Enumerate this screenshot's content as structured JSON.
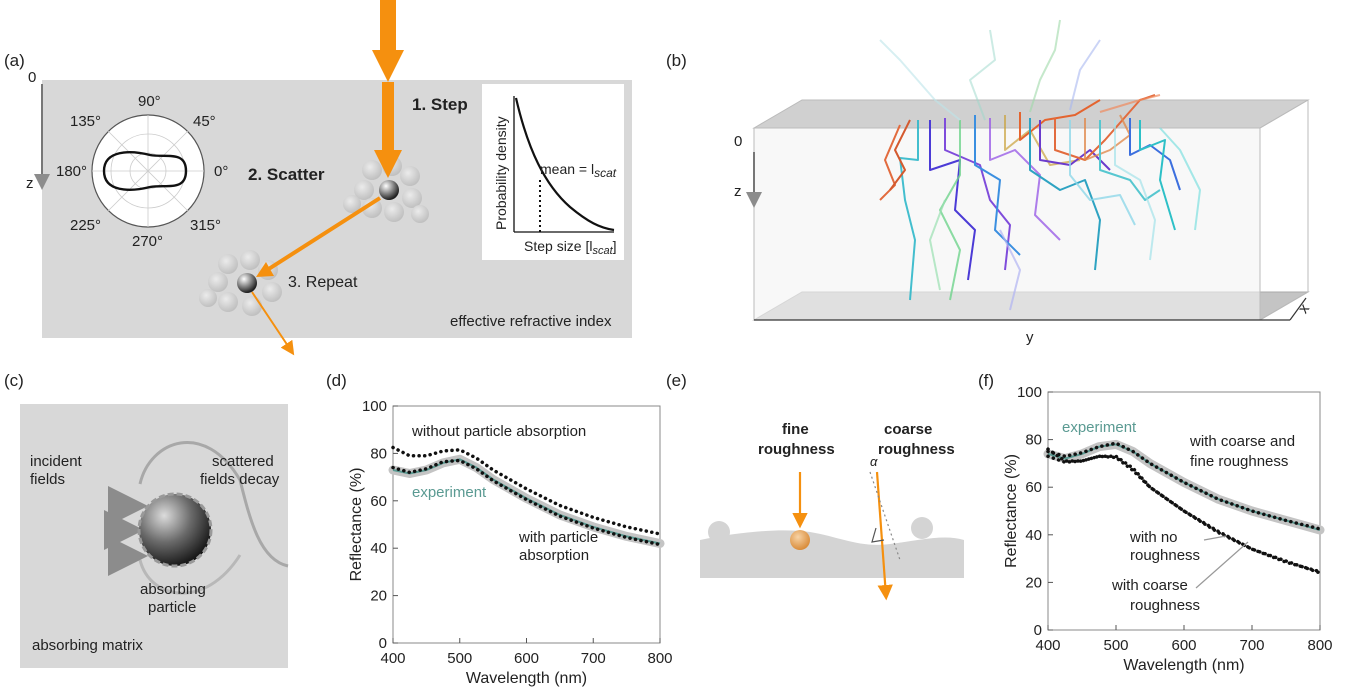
{
  "panels": {
    "a": {
      "label": "(a)",
      "axis_zero": "0",
      "axis_z": "z",
      "polar_angles": [
        "90°",
        "45°",
        "0°",
        "315°",
        "270°",
        "225°",
        "180°",
        "135°"
      ],
      "step1": "1. Step",
      "step2": "2. Scatter",
      "step3": "3. Repeat",
      "inset_ylabel": "Probability density",
      "inset_xlabel_main": "Step size [l",
      "inset_xlabel_sub": "scat",
      "inset_xlabel_end": "]",
      "inset_mean_main": "mean = l",
      "inset_mean_sub": "scat",
      "medium": "effective refractive index"
    },
    "b": {
      "label": "(b)",
      "axis_zero": "0",
      "axis_z": "z",
      "axis_y": "y",
      "axis_x": "x"
    },
    "c": {
      "label": "(c)",
      "incident_1": "incident",
      "incident_2": "fields",
      "scattered_1": "scattered",
      "scattered_2": "fields decay",
      "particle_1": "absorbing",
      "particle_2": "particle",
      "matrix": "absorbing matrix"
    },
    "d": {
      "label": "(d)",
      "ann_without": "without particle absorption",
      "ann_experiment": "experiment",
      "ann_with_1": "with particle",
      "ann_with_2": "absorption",
      "ylabel": "Reflectance (%)",
      "xlabel": "Wavelength (nm)"
    },
    "e": {
      "label": "(e)",
      "fine_1": "fine",
      "fine_2": "roughness",
      "coarse_1": "coarse",
      "coarse_2": "roughness",
      "alpha": "α"
    },
    "f": {
      "label": "(f)",
      "ann_experiment": "experiment",
      "ann_both_1": "with coarse and",
      "ann_both_2": "fine roughness",
      "ann_none_1": "with no",
      "ann_none_2": "roughness",
      "ann_coarse_1": "with coarse",
      "ann_coarse_2": "roughness",
      "ylabel": "Reflectance (%)",
      "xlabel": "Wavelength (nm)"
    }
  },
  "colors": {
    "orange": "#f5900f",
    "experiment": "#5a9a92",
    "panel_bg": "#d8d8d8"
  },
  "chart_data": [
    {
      "panel": "d",
      "type": "line",
      "xlabel": "Wavelength (nm)",
      "ylabel": "Reflectance (%)",
      "xlim": [
        400,
        800
      ],
      "ylim": [
        0,
        100
      ],
      "xticks": [
        400,
        500,
        600,
        700,
        800
      ],
      "yticks": [
        0,
        20,
        40,
        60,
        80,
        100
      ],
      "series": [
        {
          "name": "experiment",
          "style": "band",
          "x": [
            400,
            425,
            450,
            475,
            500,
            525,
            550,
            600,
            650,
            700,
            750,
            800
          ],
          "y": [
            73,
            71.5,
            73,
            76,
            77.5,
            74,
            69,
            61,
            54,
            49,
            45,
            42
          ]
        },
        {
          "name": "without particle absorption",
          "style": "dotted",
          "x": [
            400,
            425,
            450,
            475,
            500,
            525,
            550,
            600,
            650,
            700,
            750,
            800
          ],
          "y": [
            82.5,
            79,
            79,
            81,
            81.5,
            78,
            73,
            65,
            58,
            53,
            49,
            46
          ]
        },
        {
          "name": "with particle absorption",
          "style": "dotted",
          "x": [
            400,
            425,
            450,
            475,
            500,
            525,
            550,
            600,
            650,
            700,
            750,
            800
          ],
          "y": [
            74,
            72,
            73.5,
            76.5,
            77,
            73.5,
            68.5,
            60.5,
            53.5,
            48.5,
            44.5,
            41.5
          ]
        }
      ]
    },
    {
      "panel": "f",
      "type": "line",
      "xlabel": "Wavelength (nm)",
      "ylabel": "Reflectance (%)",
      "xlim": [
        400,
        800
      ],
      "ylim": [
        0,
        100
      ],
      "xticks": [
        400,
        500,
        600,
        700,
        800
      ],
      "yticks": [
        0,
        20,
        40,
        60,
        80,
        100
      ],
      "series": [
        {
          "name": "experiment",
          "style": "band",
          "x": [
            400,
            425,
            450,
            475,
            500,
            525,
            550,
            600,
            650,
            700,
            750,
            800
          ],
          "y": [
            74,
            72,
            74,
            77,
            78,
            75,
            70,
            62,
            55,
            50,
            46,
            42
          ]
        },
        {
          "name": "with coarse and fine roughness",
          "style": "dotted",
          "x": [
            400,
            425,
            450,
            475,
            500,
            525,
            550,
            600,
            650,
            700,
            750,
            800
          ],
          "y": [
            75,
            73,
            74.5,
            77,
            78.5,
            75,
            70,
            62,
            55,
            50,
            46,
            42.5
          ]
        },
        {
          "name": "with no roughness",
          "style": "dotted",
          "x": [
            400,
            425,
            450,
            475,
            500,
            525,
            550,
            600,
            650,
            700,
            750,
            800
          ],
          "y": [
            76,
            71,
            71,
            73,
            73,
            68,
            60,
            50,
            41,
            34,
            29,
            24
          ]
        },
        {
          "name": "with coarse roughness",
          "style": "dotted",
          "x": [
            400,
            425,
            450,
            475,
            500,
            525,
            550,
            600,
            650,
            700,
            750,
            800
          ],
          "y": [
            73,
            70.5,
            71,
            73,
            72.5,
            67,
            60,
            50,
            41.5,
            34,
            28.5,
            24.5
          ]
        }
      ]
    }
  ]
}
